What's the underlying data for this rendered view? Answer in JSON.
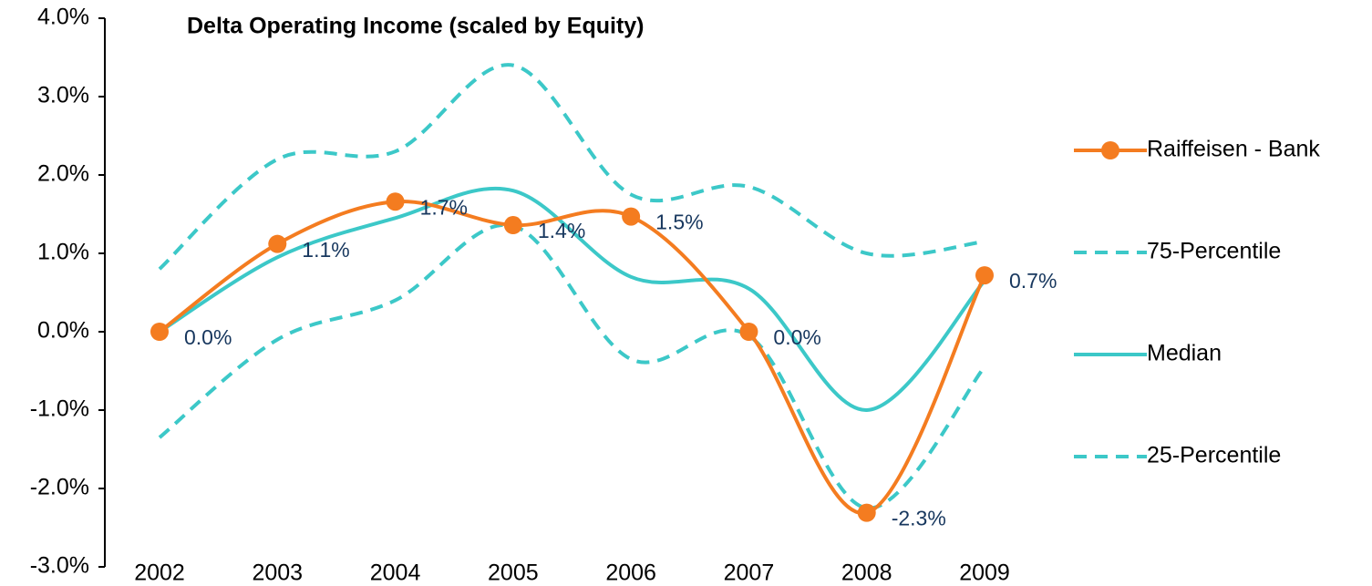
{
  "chart_data": {
    "type": "line",
    "title": "Delta Operating Income (scaled by Equity)",
    "categories": [
      "2002",
      "2003",
      "2004",
      "2005",
      "2006",
      "2007",
      "2008",
      "2009"
    ],
    "ylim": [
      -3,
      4
    ],
    "yticks": [
      {
        "value": -3,
        "label": "-3.0%"
      },
      {
        "value": -2,
        "label": "-2.0%"
      },
      {
        "value": -1,
        "label": "-1.0%"
      },
      {
        "value": 0,
        "label": "0.0%"
      },
      {
        "value": 1,
        "label": "1.0%"
      },
      {
        "value": 2,
        "label": "2.0%"
      },
      {
        "value": 3,
        "label": "3.0%"
      },
      {
        "value": 4,
        "label": "4.0%"
      }
    ],
    "legend": "right",
    "series": [
      {
        "name": "Raiffeisen - Bank",
        "color": "#f47c20",
        "markers": true,
        "dash": false,
        "values": [
          0.0,
          1.12,
          1.66,
          1.36,
          1.47,
          0.0,
          -2.31,
          0.72
        ],
        "value_labels": [
          "0.0%",
          "1.1%",
          "1.7%",
          "1.4%",
          "1.5%",
          "0.0%",
          "-2.3%",
          "0.7%"
        ]
      },
      {
        "name": "75-Percentile",
        "color": "#3cc8c8",
        "markers": false,
        "dash": true,
        "values": [
          0.8,
          2.2,
          2.3,
          3.4,
          1.75,
          1.85,
          1.0,
          1.15
        ]
      },
      {
        "name": "Median",
        "color": "#3cc8c8",
        "markers": false,
        "dash": false,
        "values": [
          0.0,
          0.95,
          1.45,
          1.8,
          0.7,
          0.55,
          -1.0,
          0.65
        ]
      },
      {
        "name": "25-Percentile",
        "color": "#3cc8c8",
        "markers": false,
        "dash": true,
        "values": [
          -1.35,
          -0.1,
          0.4,
          1.35,
          -0.35,
          -0.05,
          -2.25,
          -0.45
        ]
      }
    ]
  }
}
